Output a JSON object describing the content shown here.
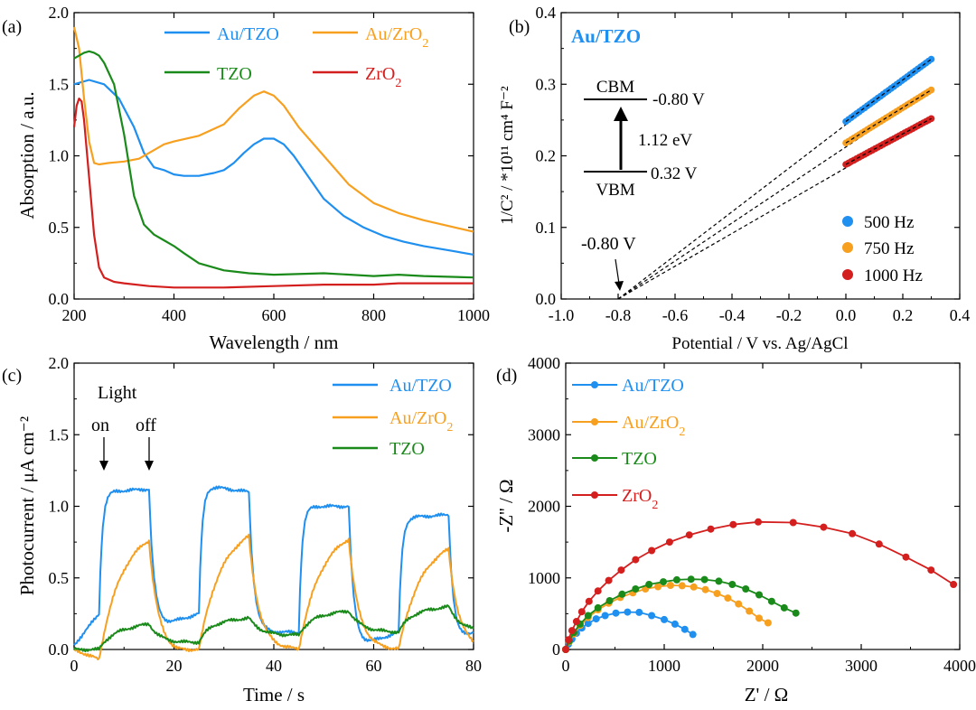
{
  "colors": {
    "au_tzo": "#1f8ff0",
    "au_zro2": "#f7a020",
    "tzo": "#1a8a1a",
    "zro2": "#d41f1f",
    "black": "#000000"
  },
  "chart_data": [
    {
      "panel": "(a)",
      "type": "line",
      "xlabel": "Wavelength / nm",
      "ylabel": "Absorption / a.u.",
      "xlim": [
        200,
        1000
      ],
      "ylim": [
        0,
        2.0
      ],
      "xticks": [
        "200",
        "400",
        "600",
        "800",
        "1000"
      ],
      "yticks": [
        "0.0",
        "0.5",
        "1.0",
        "1.5",
        "2.0"
      ],
      "legend": [
        "Au/TZO",
        "Au/ZrO2",
        "TZO",
        "ZrO2"
      ],
      "series": [
        {
          "name": "Au/TZO",
          "color_key": "au_tzo",
          "x": [
            200,
            230,
            260,
            290,
            320,
            340,
            360,
            380,
            400,
            420,
            450,
            480,
            500,
            520,
            540,
            560,
            580,
            600,
            620,
            640,
            660,
            700,
            740,
            780,
            820,
            860,
            900,
            950,
            1000
          ],
          "y": [
            1.5,
            1.53,
            1.5,
            1.4,
            1.2,
            1.02,
            0.92,
            0.9,
            0.87,
            0.86,
            0.86,
            0.88,
            0.9,
            0.95,
            1.02,
            1.08,
            1.12,
            1.12,
            1.08,
            1.0,
            0.9,
            0.7,
            0.58,
            0.5,
            0.44,
            0.4,
            0.37,
            0.34,
            0.31
          ]
        },
        {
          "name": "Au/ZrO2",
          "color_key": "au_zro2",
          "x": [
            200,
            210,
            220,
            230,
            240,
            250,
            270,
            300,
            330,
            360,
            380,
            400,
            450,
            500,
            530,
            560,
            580,
            600,
            620,
            650,
            700,
            750,
            800,
            850,
            900,
            950,
            1000
          ],
          "y": [
            1.9,
            1.75,
            1.4,
            1.1,
            0.95,
            0.94,
            0.95,
            0.96,
            0.98,
            1.04,
            1.08,
            1.1,
            1.14,
            1.22,
            1.33,
            1.42,
            1.45,
            1.42,
            1.35,
            1.2,
            1.0,
            0.8,
            0.67,
            0.6,
            0.55,
            0.51,
            0.47
          ]
        },
        {
          "name": "TZO",
          "color_key": "tzo",
          "x": [
            200,
            210,
            220,
            230,
            240,
            250,
            260,
            280,
            300,
            320,
            340,
            360,
            380,
            400,
            420,
            450,
            500,
            550,
            600,
            700,
            800,
            850,
            900,
            1000
          ],
          "y": [
            1.68,
            1.7,
            1.72,
            1.73,
            1.72,
            1.7,
            1.65,
            1.5,
            1.15,
            0.72,
            0.52,
            0.45,
            0.41,
            0.37,
            0.32,
            0.25,
            0.2,
            0.18,
            0.17,
            0.18,
            0.16,
            0.17,
            0.16,
            0.15
          ]
        },
        {
          "name": "ZrO2",
          "color_key": "zro2",
          "x": [
            200,
            205,
            210,
            215,
            220,
            230,
            240,
            250,
            260,
            280,
            300,
            350,
            400,
            500,
            600,
            700,
            800,
            850,
            900,
            1000
          ],
          "y": [
            1.2,
            1.35,
            1.4,
            1.38,
            1.25,
            0.85,
            0.45,
            0.22,
            0.15,
            0.12,
            0.11,
            0.09,
            0.08,
            0.08,
            0.09,
            0.1,
            0.1,
            0.11,
            0.11,
            0.11
          ]
        }
      ]
    },
    {
      "panel": "(b)",
      "type": "scatter",
      "title": "Au/TZO",
      "xlabel": "Potential / V vs. Ag/AgCl",
      "ylabel": "1/C² / *10¹¹ cm⁴ F⁻²",
      "xlim": [
        -1.0,
        0.4
      ],
      "ylim": [
        0,
        0.4
      ],
      "xticks": [
        "-1.0",
        "-0.8",
        "-0.6",
        "-0.4",
        "-0.2",
        "0.0",
        "0.2",
        "0.4"
      ],
      "yticks": [
        "0.0",
        "0.1",
        "0.2",
        "0.3",
        "0.4"
      ],
      "legend": [
        "500 Hz",
        "750 Hz",
        "1000 Hz"
      ],
      "series": [
        {
          "name": "500 Hz",
          "color_key": "au_tzo",
          "x_range": [
            0.0,
            0.3
          ],
          "y_range": [
            0.248,
            0.335
          ]
        },
        {
          "name": "750 Hz",
          "color_key": "au_zro2",
          "x_range": [
            0.0,
            0.3
          ],
          "y_range": [
            0.218,
            0.292
          ]
        },
        {
          "name": "1000 Hz",
          "color_key": "zro2",
          "x_range": [
            0.0,
            0.3
          ],
          "y_range": [
            0.188,
            0.252
          ]
        }
      ],
      "fit_intercept_x": -0.8,
      "annotations": {
        "intercept": "-0.80 V",
        "cbm_label": "CBM",
        "cbm_value": "-0.80 V",
        "gap": "1.12 eV",
        "vbm_label": "VBM",
        "vbm_value": "0.32 V"
      }
    },
    {
      "panel": "(c)",
      "type": "line",
      "xlabel": "Time / s",
      "ylabel": "Photocurrent / μA cm⁻²",
      "xlim": [
        0,
        80
      ],
      "ylim": [
        0,
        2.0
      ],
      "xticks": [
        "0",
        "20",
        "40",
        "60",
        "80"
      ],
      "yticks": [
        "0.0",
        "0.5",
        "1.0",
        "1.5",
        "2.0"
      ],
      "legend": [
        "Au/TZO",
        "Au/ZrO2",
        "TZO"
      ],
      "annotations": {
        "light": "Light",
        "on": "on",
        "off": "off"
      },
      "light_cycles": [
        [
          5,
          15
        ],
        [
          25,
          35
        ],
        [
          45,
          55
        ],
        [
          65,
          75
        ]
      ],
      "series": [
        {
          "name": "Au/TZO",
          "color_key": "au_tzo",
          "dark_start": [
            0.03,
            0.14,
            0.12,
            0.0
          ],
          "dark_end": [
            0.25,
            0.25,
            0.12,
            0.12
          ],
          "plateau_start": [
            1.1,
            1.15,
            1.0,
            0.92
          ],
          "plateau_end": [
            1.12,
            1.1,
            1.0,
            0.94
          ],
          "rise_tau": 0.6,
          "decay_tau": 1.0
        },
        {
          "name": "Au/ZrO2",
          "color_key": "au_zro2",
          "dark_start": [
            0.0,
            -0.08,
            0.0,
            0.0
          ],
          "dark_end": [
            -0.07,
            0.0,
            0.0,
            0.0
          ],
          "plateau_start": [
            0.0,
            0.0,
            0.0,
            0.0
          ],
          "plateau_end": [
            0.76,
            0.79,
            0.77,
            0.7
          ],
          "rise_tau": 4.5,
          "decay_tau": 2.0
        },
        {
          "name": "TZO",
          "color_key": "tzo",
          "dark_start": [
            0.0,
            0.03,
            0.09,
            0.12
          ],
          "dark_end": [
            0.0,
            0.05,
            0.1,
            0.12
          ],
          "plateau_start": [
            0.12,
            0.19,
            0.23,
            0.26
          ],
          "plateau_end": [
            0.18,
            0.22,
            0.27,
            0.3
          ],
          "rise_tau": 2.0,
          "decay_tau": 2.5
        }
      ]
    },
    {
      "panel": "(d)",
      "type": "scatter",
      "xlabel": "Z' / Ω",
      "ylabel": "-Z'' / Ω",
      "xlim": [
        0,
        4400
      ],
      "ylim": [
        0,
        4400
      ],
      "xticks": [
        "0",
        "1000",
        "2000",
        "3000",
        "4000"
      ],
      "yticks": [
        "0",
        "1000",
        "2000",
        "3000",
        "4000"
      ],
      "legend": [
        "Au/TZO",
        "Au/ZrO2",
        "TZO",
        "ZrO2"
      ],
      "series": [
        {
          "name": "Au/TZO",
          "color_key": "au_tzo",
          "x": [
            0,
            30,
            70,
            120,
            180,
            250,
            340,
            440,
            560,
            690,
            820,
            960,
            1100,
            1220,
            1330,
            1420
          ],
          "y": [
            0,
            80,
            160,
            250,
            330,
            400,
            470,
            520,
            560,
            575,
            570,
            520,
            460,
            390,
            310,
            230
          ]
        },
        {
          "name": "Au/ZrO2",
          "color_key": "au_zro2",
          "x": [
            0,
            40,
            90,
            160,
            250,
            360,
            480,
            610,
            750,
            890,
            1030,
            1170,
            1300,
            1430,
            1560,
            1690,
            1810,
            1930,
            2050,
            2160,
            2260
          ],
          "y": [
            0,
            120,
            240,
            370,
            490,
            610,
            710,
            800,
            870,
            930,
            965,
            985,
            980,
            960,
            920,
            860,
            790,
            700,
            590,
            480,
            410
          ]
        },
        {
          "name": "TZO",
          "color_key": "tzo",
          "x": [
            0,
            40,
            90,
            160,
            250,
            360,
            490,
            630,
            780,
            930,
            1090,
            1240,
            1400,
            1550,
            1710,
            1860,
            2010,
            2160,
            2300,
            2440,
            2570
          ],
          "y": [
            0,
            130,
            260,
            390,
            520,
            640,
            750,
            850,
            930,
            1000,
            1040,
            1070,
            1080,
            1075,
            1050,
            1000,
            930,
            840,
            740,
            640,
            560
          ]
        },
        {
          "name": "ZrO2",
          "color_key": "zro2",
          "x": [
            0,
            30,
            70,
            120,
            180,
            260,
            360,
            480,
            620,
            780,
            960,
            1160,
            1380,
            1620,
            1870,
            2150,
            2540,
            2880,
            3200,
            3500,
            3800,
            4080,
            4330
          ],
          "y": [
            0,
            150,
            290,
            430,
            580,
            740,
            900,
            1060,
            1220,
            1380,
            1520,
            1650,
            1760,
            1850,
            1920,
            1960,
            1950,
            1880,
            1780,
            1620,
            1420,
            1220,
            1000
          ]
        }
      ]
    }
  ]
}
